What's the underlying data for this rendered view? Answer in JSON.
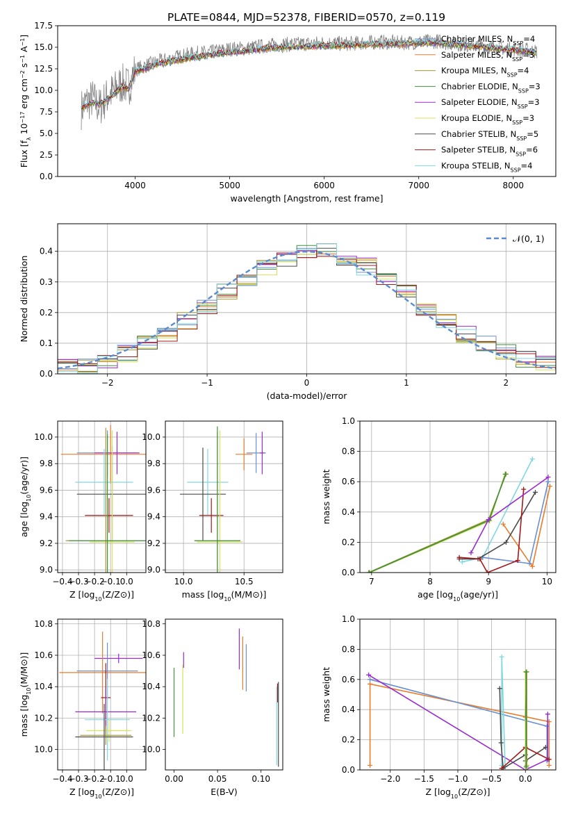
{
  "figure_title": "PLATE=0844, MJD=52378, FIBERID=0570, z=0.119",
  "models": [
    {
      "name": "Chabrier MILES, N_SSP=4",
      "color": "#6a8fd0"
    },
    {
      "name": "Salpeter MILES, N_SSP=3",
      "color": "#e87b2a"
    },
    {
      "name": "Kroupa MILES, N_SSP=4",
      "color": "#a89a2e"
    },
    {
      "name": "Chabrier ELODIE, N_SSP=3",
      "color": "#3f8f3f"
    },
    {
      "name": "Salpeter ELODIE, N_SSP=3",
      "color": "#9a2ad0"
    },
    {
      "name": "Kroupa ELODIE, N_SSP=3",
      "color": "#d8e25a"
    },
    {
      "name": "Chabrier STELIB, N_SSP=5",
      "color": "#4a4a4a"
    },
    {
      "name": "Salpeter STELIB, N_SSP=6",
      "color": "#a31818"
    },
    {
      "name": "Kroupa STELIB, N_SSP=4",
      "color": "#7fd8e0"
    }
  ],
  "chart_data": [
    {
      "id": "spectrum",
      "type": "line",
      "xlabel": "wavelength [Angstrom, rest frame]",
      "ylabel": "Flux [f_λ 10^-17 erg cm^-2 s^-1 A^-1]",
      "xlim": [
        3180,
        8450
      ],
      "ylim": [
        0,
        17.5
      ],
      "xticks": [
        4000,
        5000,
        6000,
        7000,
        8000
      ],
      "yticks": [
        0.0,
        2.5,
        5.0,
        7.5,
        10.0,
        12.5,
        15.0,
        17.5
      ],
      "ytick_labels": [
        "0.0",
        "2.5",
        "5.0",
        "7.5",
        "10.0",
        "12.5",
        "15.0",
        "17.5"
      ],
      "legend": "top-right",
      "data_color": "#808080",
      "data_x": [
        3430,
        3480,
        3550,
        3620,
        3700,
        3780,
        3860,
        3930,
        4000,
        4100,
        4200,
        4350,
        4500,
        4650,
        4800,
        5000,
        5200,
        5400,
        5600,
        5800,
        6000,
        6200,
        6400,
        6600,
        6800,
        7000,
        7200,
        7400,
        7500,
        7700,
        7900,
        8100,
        8250
      ],
      "data_y": [
        7.8,
        8.6,
        9.0,
        8.0,
        9.2,
        10.0,
        10.8,
        10.4,
        12.4,
        12.8,
        13.2,
        13.6,
        14.0,
        14.3,
        14.4,
        14.8,
        14.9,
        15.2,
        15.3,
        15.4,
        15.5,
        15.4,
        15.5,
        15.6,
        15.5,
        15.6,
        15.7,
        15.4,
        15.3,
        15.1,
        14.9,
        14.7,
        14.5
      ],
      "model_x": [
        3430,
        3480,
        3550,
        3620,
        3700,
        3780,
        3860,
        3930,
        4000,
        4100,
        4200,
        4350,
        4500,
        4650,
        4800,
        5000,
        5200,
        5400,
        5600,
        5800,
        6000,
        6200,
        6400,
        6600,
        6800,
        7000,
        7200,
        7400,
        7500,
        7700,
        7900,
        8100,
        8250
      ],
      "model_y": [
        8.0,
        8.2,
        8.6,
        8.4,
        8.9,
        9.6,
        10.4,
        10.2,
        12.2,
        12.5,
        12.9,
        13.3,
        13.6,
        13.9,
        14.1,
        14.4,
        14.6,
        14.9,
        15.0,
        15.1,
        15.2,
        15.2,
        15.3,
        15.4,
        15.4,
        15.5,
        15.5,
        15.3,
        15.2,
        15.0,
        14.8,
        14.6,
        14.4
      ]
    },
    {
      "id": "residuals",
      "type": "step-histogram",
      "xlabel": "(data-model)/error",
      "ylabel": "Normed distribution",
      "xlim": [
        -2.5,
        2.5
      ],
      "ylim": [
        0,
        0.49
      ],
      "xticks": [
        -2,
        -1,
        0,
        1,
        2
      ],
      "xtick_labels": [
        "−2",
        "−1",
        "0",
        "1",
        "2"
      ],
      "yticks": [
        0.0,
        0.1,
        0.2,
        0.3,
        0.4
      ],
      "ytick_labels": [
        "0.0",
        "0.1",
        "0.2",
        "0.3",
        "0.4"
      ],
      "grid": true,
      "legend": "top-right",
      "legend_label": "𝒩(0, 1)",
      "reference_color": "#5a8ad0",
      "bin_edges": [
        -2.5,
        -2.3,
        -2.1,
        -1.9,
        -1.7,
        -1.5,
        -1.3,
        -1.1,
        -0.9,
        -0.7,
        -0.5,
        -0.3,
        -0.1,
        0.1,
        0.3,
        0.5,
        0.7,
        0.9,
        1.1,
        1.3,
        1.5,
        1.7,
        1.9,
        2.1,
        2.3,
        2.5
      ],
      "gaussian_reference": [
        0.018,
        0.028,
        0.046,
        0.066,
        0.095,
        0.13,
        0.171,
        0.218,
        0.266,
        0.312,
        0.352,
        0.381,
        0.397,
        0.397,
        0.381,
        0.352,
        0.312,
        0.266,
        0.218,
        0.171,
        0.13,
        0.095,
        0.066,
        0.046,
        0.028
      ]
    },
    {
      "id": "age-Z",
      "type": "errorbar",
      "xlabel": "Z [log10(Z/Z⊙)]",
      "ylabel": "age [log10(age/yr)]",
      "xlim": [
        -0.43,
        0.12
      ],
      "ylim": [
        8.98,
        10.12
      ],
      "xticks": [
        -0.4,
        -0.3,
        -0.2,
        -0.1,
        0.0
      ],
      "xtick_labels": [
        "−0.4",
        "−0.3",
        "−0.2",
        "−0.1",
        "0.0"
      ],
      "yticks": [
        9.0,
        9.2,
        9.4,
        9.6,
        9.8,
        10.0
      ],
      "ytick_labels": [
        "9.0",
        "9.2",
        "9.4",
        "9.6",
        "9.8",
        "10.0"
      ],
      "grid": true,
      "points": [
        {
          "model": 0,
          "x": -0.12,
          "y": 9.88,
          "xerr": 0.19,
          "yerr": 0.17
        },
        {
          "model": 1,
          "x": -0.1,
          "y": 9.87,
          "xerr": 0.31,
          "yerr": 0.22
        },
        {
          "model": 4,
          "x": -0.06,
          "y": 9.88,
          "xerr": 0.14,
          "yerr": 0.16
        },
        {
          "model": 8,
          "x": -0.14,
          "y": 9.66,
          "xerr": 0.18,
          "yerr": 0.25
        },
        {
          "model": 6,
          "x": -0.09,
          "y": 9.57,
          "xerr": 0.22,
          "yerr": 0.36
        },
        {
          "model": 7,
          "x": -0.11,
          "y": 9.41,
          "xerr": 0.15,
          "yerr": 0.13
        },
        {
          "model": 5,
          "x": -0.09,
          "y": 9.21,
          "xerr": 0.14,
          "yerr": 0.84
        },
        {
          "model": 2,
          "x": -0.13,
          "y": 9.22,
          "xerr": 0.25,
          "yerr": 0.85
        },
        {
          "model": 3,
          "x": -0.12,
          "y": 9.22,
          "xerr": 0.24,
          "yerr": 0.8
        }
      ]
    },
    {
      "id": "age-mass",
      "type": "errorbar",
      "xlabel": "mass [log10(M/M⊙)]",
      "ylabel": "",
      "xlim": [
        9.85,
        10.82
      ],
      "ylim": [
        8.98,
        10.12
      ],
      "xticks": [
        10.0,
        10.5
      ],
      "xtick_labels": [
        "10.0",
        "10.5"
      ],
      "yticks": [
        9.0,
        9.2,
        9.4,
        9.6,
        9.8,
        10.0
      ],
      "ytick_labels": [
        "9.0",
        "9.2",
        "9.4",
        "9.6",
        "9.8",
        "10.0"
      ],
      "grid": true,
      "points": [
        {
          "model": 0,
          "x": 10.6,
          "y": 9.88,
          "xerr": 0.08,
          "yerr": 0.15
        },
        {
          "model": 1,
          "x": 10.5,
          "y": 9.87,
          "xerr": 0.07,
          "yerr": 0.12
        },
        {
          "model": 4,
          "x": 10.65,
          "y": 9.88,
          "xerr": 0.02,
          "yerr": 0.16
        },
        {
          "model": 8,
          "x": 10.2,
          "y": 9.66,
          "xerr": 0.17,
          "yerr": 0.25
        },
        {
          "model": 6,
          "x": 10.16,
          "y": 9.57,
          "xerr": 0.19,
          "yerr": 0.35
        },
        {
          "model": 7,
          "x": 10.23,
          "y": 9.41,
          "xerr": 0.1,
          "yerr": 0.13
        },
        {
          "model": 5,
          "x": 10.3,
          "y": 9.21,
          "xerr": 0.19,
          "yerr": 0.84
        },
        {
          "model": 2,
          "x": 10.28,
          "y": 9.22,
          "xerr": 0.19,
          "yerr": 0.82
        },
        {
          "model": 3,
          "x": 10.28,
          "y": 9.22,
          "xerr": 0.19,
          "yerr": 0.86
        }
      ]
    },
    {
      "id": "massweight-age",
      "type": "line",
      "xlabel": "age [log10(age/yr)]",
      "ylabel": "mass weight",
      "xlim": [
        6.8,
        10.15
      ],
      "ylim": [
        0,
        1
      ],
      "xticks": [
        7,
        8,
        9,
        10
      ],
      "xtick_labels": [
        "7",
        "8",
        "9",
        "10"
      ],
      "yticks": [
        0.0,
        0.2,
        0.4,
        0.6,
        0.8,
        1.0
      ],
      "ytick_labels": [
        "0.0",
        "0.2",
        "0.4",
        "0.6",
        "0.8",
        "1.0"
      ],
      "grid": true,
      "series": [
        {
          "model": 2,
          "x": [
            6.95,
            9.0,
            9.3
          ],
          "y": [
            0.0,
            0.35,
            0.65
          ]
        },
        {
          "model": 5,
          "x": [
            6.97,
            9.02,
            9.28
          ],
          "y": [
            0.0,
            0.34,
            0.65
          ]
        },
        {
          "model": 3,
          "x": [
            6.96,
            9.01,
            9.29
          ],
          "y": [
            0.0,
            0.345,
            0.65
          ]
        },
        {
          "model": 8,
          "x": [
            8.55,
            8.9,
            9.75
          ],
          "y": [
            0.07,
            0.1,
            0.75
          ]
        },
        {
          "model": 1,
          "x": [
            9.25,
            9.75,
            10.05
          ],
          "y": [
            0.32,
            0.04,
            0.57
          ]
        },
        {
          "model": 0,
          "x": [
            8.9,
            9.7,
            10.02
          ],
          "y": [
            0.1,
            0.06,
            0.6
          ]
        },
        {
          "model": 6,
          "x": [
            8.5,
            8.82,
            9.3,
            9.8
          ],
          "y": [
            0.09,
            0.09,
            0.2,
            0.53
          ]
        },
        {
          "model": 7,
          "x": [
            8.5,
            8.85,
            8.98,
            9.5,
            9.6
          ],
          "y": [
            0.1,
            0.09,
            0.0,
            0.08,
            0.55
          ]
        },
        {
          "model": 4,
          "x": [
            8.7,
            9.0,
            10.02
          ],
          "y": [
            0.13,
            0.35,
            0.63
          ]
        }
      ]
    },
    {
      "id": "mass-Z",
      "type": "errorbar",
      "xlabel": "Z [log10(Z/Z⊙)]",
      "ylabel": "mass [log10(M/M⊙)]",
      "xlim": [
        -0.43,
        0.12
      ],
      "ylim": [
        9.87,
        10.83
      ],
      "xticks": [
        -0.4,
        -0.3,
        -0.2,
        -0.1,
        0.0
      ],
      "xtick_labels": [
        "−0.4",
        "−0.3",
        "−0.2",
        "−0.1",
        "0.0"
      ],
      "yticks": [
        10.0,
        10.2,
        10.4,
        10.6,
        10.8
      ],
      "ytick_labels": [
        "10.0",
        "10.2",
        "10.4",
        "10.6",
        "10.8"
      ],
      "grid": true,
      "points": [
        {
          "model": 4,
          "x": -0.05,
          "y": 10.58,
          "xerr": 0.15,
          "yerr": 0.03
        },
        {
          "model": 0,
          "x": -0.12,
          "y": 10.5,
          "xerr": 0.19,
          "yerr": 0.18
        },
        {
          "model": 1,
          "x": -0.15,
          "y": 10.49,
          "xerr": 0.27,
          "yerr": 0.26
        },
        {
          "model": 7,
          "x": -0.13,
          "y": 10.33,
          "xerr": 0.03,
          "yerr": 0.22
        },
        {
          "model": 4,
          "x": -0.13,
          "y": 10.24,
          "xerr": 0.19,
          "yerr": 0.15
        },
        {
          "model": 8,
          "x": -0.12,
          "y": 10.19,
          "xerr": 0.14,
          "yerr": 0.26
        },
        {
          "model": 5,
          "x": -0.11,
          "y": 10.12,
          "xerr": 0.14,
          "yerr": 0.07
        },
        {
          "model": 2,
          "x": -0.13,
          "y": 10.09,
          "xerr": 0.16,
          "yerr": 0.06
        },
        {
          "model": 6,
          "x": -0.14,
          "y": 10.08,
          "xerr": 0.18,
          "yerr": 0.21
        }
      ]
    },
    {
      "id": "mass-EBV",
      "type": "errorbar",
      "xlabel": "E(B-V)",
      "ylabel": "",
      "xlim": [
        -0.01,
        0.125
      ],
      "ylim": [
        9.87,
        10.83
      ],
      "xticks": [
        0.0,
        0.05,
        0.1
      ],
      "xtick_labels": [
        "0.00",
        "0.05",
        "0.10"
      ],
      "yticks": [
        10.0,
        10.2,
        10.4,
        10.6,
        10.8
      ],
      "ytick_labels": [
        "10.0",
        "10.2",
        "10.4",
        "10.6",
        "10.8"
      ],
      "grid": false,
      "points": [
        {
          "model": 3,
          "x": 0.0,
          "y": 10.3,
          "xerr": 0,
          "yerr": 0.22
        },
        {
          "model": 5,
          "x": 0.01,
          "y": 10.32,
          "xerr": 0,
          "yerr": 0.22
        },
        {
          "model": 4,
          "x": 0.011,
          "y": 10.57,
          "xerr": 0,
          "yerr": 0.05
        },
        {
          "model": 4,
          "x": 0.075,
          "y": 10.64,
          "xerr": 0,
          "yerr": 0.13
        },
        {
          "model": 1,
          "x": 0.079,
          "y": 10.55,
          "xerr": 0,
          "yerr": 0.17
        },
        {
          "model": 0,
          "x": 0.083,
          "y": 10.52,
          "xerr": 0,
          "yerr": 0.15
        },
        {
          "model": 7,
          "x": 0.119,
          "y": 10.36,
          "xerr": 0,
          "yerr": 0.06
        },
        {
          "model": 8,
          "x": 0.118,
          "y": 10.15,
          "xerr": 0,
          "yerr": 0.25
        },
        {
          "model": 6,
          "x": 0.12,
          "y": 10.16,
          "xerr": 0,
          "yerr": 0.27
        }
      ]
    },
    {
      "id": "massweight-Z",
      "type": "line",
      "xlabel": "Z [log10(Z/Z⊙)]",
      "ylabel": "mass weight",
      "xlim": [
        -2.45,
        0.45
      ],
      "ylim": [
        0,
        1
      ],
      "xticks": [
        -2.0,
        -1.5,
        -1.0,
        -0.5,
        0.0
      ],
      "xtick_labels": [
        "−2.0",
        "−1.5",
        "−1.0",
        "−0.5",
        "0.0"
      ],
      "yticks": [
        0.0,
        0.2,
        0.4,
        0.6,
        0.8,
        1.0
      ],
      "ytick_labels": [
        "0.0",
        "0.2",
        "0.4",
        "0.6",
        "0.8",
        "1.0"
      ],
      "grid": true,
      "series": [
        {
          "model": 1,
          "x": [
            -2.3,
            -2.3,
            0.35,
            0.35
          ],
          "y": [
            0.03,
            0.57,
            0.32,
            0.03
          ]
        },
        {
          "model": 0,
          "x": [
            -2.3,
            0.32,
            0.32
          ],
          "y": [
            0.6,
            0.29,
            0.06
          ]
        },
        {
          "model": 4,
          "x": [
            -2.32,
            0.0,
            0.33,
            0.33
          ],
          "y": [
            0.63,
            0.0,
            0.07,
            0.37
          ]
        },
        {
          "model": 8,
          "x": [
            -0.35,
            -0.35,
            -0.3
          ],
          "y": [
            0.03,
            0.75,
            0.02
          ]
        },
        {
          "model": 6,
          "x": [
            -0.38,
            -0.36,
            -0.33,
            0.0,
            0.0,
            0.3
          ],
          "y": [
            0.54,
            0.18,
            0.01,
            0.1,
            0.06,
            0.15
          ]
        },
        {
          "model": 7,
          "x": [
            -0.35,
            0.0,
            0.35
          ],
          "y": [
            0.01,
            0.15,
            0.07
          ]
        },
        {
          "model": 5,
          "x": [
            0.0,
            0.0,
            0.02
          ],
          "y": [
            0.0,
            0.65,
            0.02
          ]
        },
        {
          "model": 2,
          "x": [
            0.02,
            0.02,
            0.0
          ],
          "y": [
            0.03,
            0.65,
            0.35
          ]
        },
        {
          "model": 3,
          "x": [
            0.01,
            0.01
          ],
          "y": [
            0.02,
            0.65
          ]
        }
      ]
    }
  ]
}
